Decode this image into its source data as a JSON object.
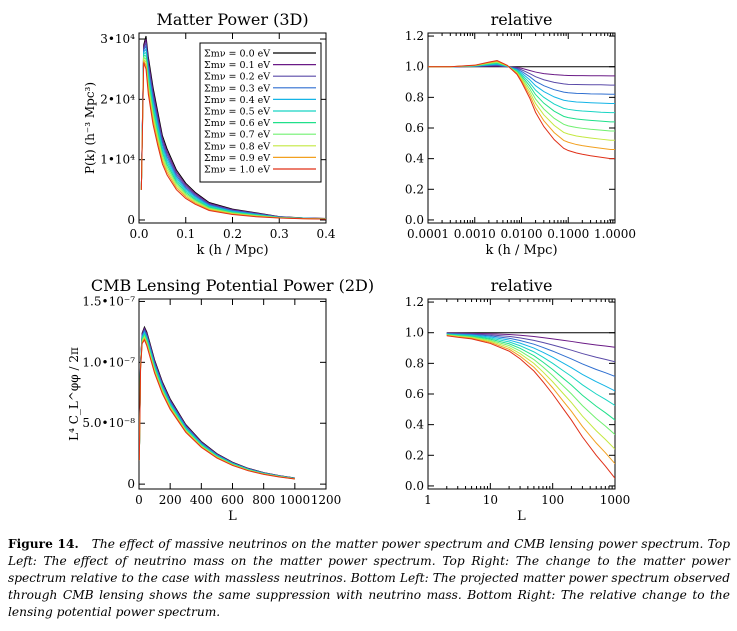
{
  "colors": [
    "#000000",
    "#6a1a86",
    "#5a4aa8",
    "#2f6fd0",
    "#14b4e6",
    "#18d4c4",
    "#20e08a",
    "#70f070",
    "#c4e840",
    "#f2a020",
    "#e03018"
  ],
  "chart_data": [
    {
      "id": "matter-power",
      "type": "line",
      "title": "Matter Power (3D)",
      "xlabel": "k (h / Mpc)",
      "ylabel": "P(k) (h⁻³ Mpc³)",
      "xlim": [
        0,
        0.4
      ],
      "ylim": [
        -500,
        31000
      ],
      "xticks": [
        {
          "v": 0,
          "label": "0.0"
        },
        {
          "v": 0.1,
          "label": "0.1"
        },
        {
          "v": 0.2,
          "label": "0.2"
        },
        {
          "v": 0.3,
          "label": "0.3"
        },
        {
          "v": 0.4,
          "label": "0.4"
        }
      ],
      "yticks": [
        {
          "v": 0,
          "label": "0"
        },
        {
          "v": 10000,
          "label": "1•10⁴"
        },
        {
          "v": 20000,
          "label": "2•10⁴"
        },
        {
          "v": 30000,
          "label": "3•10⁴"
        }
      ],
      "legend_position": "top-right",
      "x": [
        0.005,
        0.01,
        0.015,
        0.02,
        0.03,
        0.04,
        0.05,
        0.06,
        0.08,
        0.1,
        0.12,
        0.15,
        0.2,
        0.25,
        0.3,
        0.35,
        0.4
      ],
      "base": [
        5000,
        29000,
        30500,
        27000,
        22000,
        18000,
        14000,
        11500,
        8000,
        5800,
        4300,
        2600,
        1500,
        900,
        550,
        350,
        250
      ],
      "ratio_x": [
        0.005,
        0.01,
        0.015,
        0.02,
        0.03,
        0.04,
        0.05,
        0.06,
        0.08,
        0.1,
        0.12,
        0.15,
        0.2,
        0.25,
        0.3,
        0.35,
        0.4
      ],
      "ratio_shape": [
        0,
        0.25,
        0.45,
        0.57,
        0.7,
        0.78,
        0.84,
        0.88,
        0.93,
        0.96,
        0.98,
        0.99,
        1,
        1,
        1,
        1,
        1
      ],
      "series": [
        {
          "name": "Σmν = 0.0 eV",
          "nu_mass": 0.0
        },
        {
          "name": "Σmν = 0.1 eV",
          "nu_mass": 0.1
        },
        {
          "name": "Σmν = 0.2 eV",
          "nu_mass": 0.2
        },
        {
          "name": "Σmν = 0.3 eV",
          "nu_mass": 0.3
        },
        {
          "name": "Σmν = 0.4 eV",
          "nu_mass": 0.4
        },
        {
          "name": "Σmν = 0.5 eV",
          "nu_mass": 0.5
        },
        {
          "name": "Σmν = 0.6 eV",
          "nu_mass": 0.6
        },
        {
          "name": "Σmν = 0.7 eV",
          "nu_mass": 0.7
        },
        {
          "name": "Σmν = 0.8 eV",
          "nu_mass": 0.8
        },
        {
          "name": "Σmν = 0.9 eV",
          "nu_mass": 0.9
        },
        {
          "name": "Σmν = 1.0 eV",
          "nu_mass": 1.0
        }
      ]
    },
    {
      "id": "matter-relative",
      "type": "line",
      "title": "relative",
      "xlabel": "k (h / Mpc)",
      "ylabel": "",
      "xscale": "log",
      "xlim": [
        0.0001,
        1.0
      ],
      "ylim": [
        -0.02,
        1.22
      ],
      "xticks": [
        {
          "v": 0.0001,
          "label": "0.0001"
        },
        {
          "v": 0.001,
          "label": "0.0010"
        },
        {
          "v": 0.01,
          "label": "0.0100"
        },
        {
          "v": 0.1,
          "label": "0.1000"
        },
        {
          "v": 1.0,
          "label": "1.0000"
        }
      ],
      "yticks": [
        {
          "v": 0.0,
          "label": "0.0"
        },
        {
          "v": 0.2,
          "label": "0.2"
        },
        {
          "v": 0.4,
          "label": "0.4"
        },
        {
          "v": 0.6,
          "label": "0.6"
        },
        {
          "v": 0.8,
          "label": "0.8"
        },
        {
          "v": 1.0,
          "label": "1.0"
        },
        {
          "v": 1.2,
          "label": "1.2"
        }
      ],
      "x": [
        0.0001,
        0.0003,
        0.001,
        0.002,
        0.003,
        0.005,
        0.008,
        0.01,
        0.015,
        0.02,
        0.03,
        0.05,
        0.08,
        0.1,
        0.15,
        0.2,
        0.3,
        0.5,
        0.8,
        1.0
      ],
      "series": [
        {
          "name": "Σmν = 0.0 eV",
          "values": [
            1,
            1,
            1,
            1,
            1,
            1,
            1,
            1,
            1,
            1,
            1,
            1,
            1,
            1,
            1,
            1,
            1,
            1,
            1,
            1
          ]
        },
        {
          "name": "Σmν = 0.1 eV",
          "values": [
            1,
            1,
            1.001,
            1.003,
            1.004,
            1.0,
            0.995,
            0.99,
            0.975,
            0.965,
            0.955,
            0.948,
            0.944,
            0.943,
            0.942,
            0.942,
            0.941,
            0.941,
            0.94,
            0.94
          ]
        },
        {
          "name": "Σmν = 0.2 eV",
          "values": [
            1,
            1,
            1.002,
            1.006,
            1.008,
            1.0,
            0.99,
            0.98,
            0.955,
            0.935,
            0.915,
            0.898,
            0.888,
            0.885,
            0.884,
            0.883,
            0.882,
            0.882,
            0.88,
            0.88
          ]
        },
        {
          "name": "Σmν = 0.3 eV",
          "values": [
            1,
            1,
            1.003,
            1.009,
            1.012,
            1.001,
            0.985,
            0.97,
            0.935,
            0.905,
            0.876,
            0.85,
            0.834,
            0.83,
            0.826,
            0.825,
            0.823,
            0.822,
            0.82,
            0.82
          ]
        },
        {
          "name": "Σmν = 0.4 eV",
          "values": [
            1,
            1,
            1.004,
            1.012,
            1.016,
            1.002,
            0.98,
            0.96,
            0.915,
            0.876,
            0.838,
            0.803,
            0.781,
            0.776,
            0.77,
            0.768,
            0.765,
            0.762,
            0.76,
            0.76
          ]
        },
        {
          "name": "Σmν = 0.5 eV",
          "values": [
            1,
            1,
            1.005,
            1.015,
            1.02,
            1.003,
            0.975,
            0.95,
            0.895,
            0.847,
            0.8,
            0.756,
            0.728,
            0.722,
            0.714,
            0.711,
            0.708,
            0.703,
            0.7,
            0.7
          ]
        },
        {
          "name": "Σmν = 0.6 eV",
          "values": [
            1,
            1,
            1.006,
            1.018,
            1.024,
            1.004,
            0.97,
            0.94,
            0.875,
            0.818,
            0.762,
            0.71,
            0.676,
            0.668,
            0.659,
            0.655,
            0.65,
            0.645,
            0.64,
            0.64
          ]
        },
        {
          "name": "Σmν = 0.7 eV",
          "values": [
            1,
            1,
            1.007,
            1.021,
            1.028,
            1.005,
            0.965,
            0.93,
            0.855,
            0.789,
            0.724,
            0.663,
            0.624,
            0.614,
            0.603,
            0.598,
            0.592,
            0.586,
            0.58,
            0.58
          ]
        },
        {
          "name": "Σmν = 0.8 eV",
          "values": [
            1,
            1,
            1.008,
            1.024,
            1.032,
            1.006,
            0.96,
            0.92,
            0.835,
            0.76,
            0.686,
            0.617,
            0.571,
            0.561,
            0.548,
            0.542,
            0.535,
            0.527,
            0.52,
            0.52
          ]
        },
        {
          "name": "Σmν = 0.9 eV",
          "values": [
            1,
            1,
            1.009,
            1.027,
            1.036,
            1.007,
            0.955,
            0.91,
            0.815,
            0.731,
            0.648,
            0.57,
            0.519,
            0.507,
            0.492,
            0.485,
            0.477,
            0.468,
            0.46,
            0.46
          ]
        },
        {
          "name": "Σmν = 1.0 eV",
          "values": [
            1,
            1,
            1.01,
            1.03,
            1.04,
            1.008,
            0.95,
            0.9,
            0.795,
            0.702,
            0.61,
            0.524,
            0.467,
            0.453,
            0.437,
            0.429,
            0.419,
            0.409,
            0.4,
            0.4
          ]
        }
      ]
    },
    {
      "id": "cmb-lensing-power",
      "type": "line",
      "title": "CMB Lensing Potential Power (2D)",
      "xlabel": "L",
      "ylabel": "L⁴ C_L^φφ / 2π",
      "xlim": [
        0,
        1200
      ],
      "ylim": [
        -4e-09,
        1.52e-07
      ],
      "xticks": [
        {
          "v": 0,
          "label": "0"
        },
        {
          "v": 200,
          "label": "200"
        },
        {
          "v": 400,
          "label": "400"
        },
        {
          "v": 600,
          "label": "600"
        },
        {
          "v": 800,
          "label": "800"
        },
        {
          "v": 1000,
          "label": "1000"
        },
        {
          "v": 1200,
          "label": "1200"
        }
      ],
      "yticks": [
        {
          "v": 0,
          "label": "0"
        },
        {
          "v": 5e-08,
          "label": "5.0•10⁻⁸"
        },
        {
          "v": 1e-07,
          "label": "1.0•10⁻⁷"
        },
        {
          "v": 1.5e-07,
          "label": "1.5•10⁻⁷"
        }
      ],
      "x": [
        2,
        10,
        20,
        35,
        50,
        70,
        100,
        150,
        200,
        300,
        400,
        500,
        600,
        700,
        800,
        900,
        1000
      ],
      "base": [
        2e-08,
        1e-07,
        1.24e-07,
        1.29e-07,
        1.25e-07,
        1.16e-07,
        1.02e-07,
        8.4e-08,
        7e-08,
        4.9e-08,
        3.5e-08,
        2.5e-08,
        1.8e-08,
        1.3e-08,
        9.5e-09,
        7e-09,
        5e-09
      ],
      "series": [
        {
          "name": "Σmν = 0.0 eV"
        },
        {
          "name": "Σmν = 0.1 eV"
        },
        {
          "name": "Σmν = 0.2 eV"
        },
        {
          "name": "Σmν = 0.3 eV"
        },
        {
          "name": "Σmν = 0.4 eV"
        },
        {
          "name": "Σmν = 0.5 eV"
        },
        {
          "name": "Σmν = 0.6 eV"
        },
        {
          "name": "Σmν = 0.7 eV"
        },
        {
          "name": "Σmν = 0.8 eV"
        },
        {
          "name": "Σmν = 0.9 eV"
        },
        {
          "name": "Σmν = 1.0 eV"
        }
      ]
    },
    {
      "id": "cmb-relative",
      "type": "line",
      "title": "relative",
      "xlabel": "L",
      "ylabel": "",
      "xscale": "log",
      "xlim": [
        1,
        1000
      ],
      "ylim": [
        -0.02,
        1.22
      ],
      "xticks": [
        {
          "v": 1,
          "label": "1"
        },
        {
          "v": 10,
          "label": "10"
        },
        {
          "v": 100,
          "label": "100"
        },
        {
          "v": 1000,
          "label": "1000"
        }
      ],
      "yticks": [
        {
          "v": 0.0,
          "label": "0.0"
        },
        {
          "v": 0.2,
          "label": "0.2"
        },
        {
          "v": 0.4,
          "label": "0.4"
        },
        {
          "v": 0.6,
          "label": "0.6"
        },
        {
          "v": 0.8,
          "label": "0.8"
        },
        {
          "v": 1.0,
          "label": "1.0"
        },
        {
          "v": 1.2,
          "label": "1.2"
        }
      ],
      "x": [
        2,
        3,
        5,
        10,
        20,
        30,
        50,
        70,
        100,
        150,
        200,
        300,
        500,
        700,
        1000
      ],
      "series": [
        {
          "name": "Σmν = 0.0 eV",
          "values": [
            1,
            1,
            1,
            1,
            1,
            1,
            1,
            1,
            1,
            1,
            1,
            1,
            1,
            1,
            1
          ]
        },
        {
          "name": "Σmν = 0.1 eV",
          "values": [
            0.998,
            0.997,
            0.996,
            0.993,
            0.988,
            0.983,
            0.975,
            0.968,
            0.96,
            0.95,
            0.943,
            0.932,
            0.92,
            0.913,
            0.905
          ]
        },
        {
          "name": "Σmν = 0.2 eV",
          "values": [
            0.996,
            0.994,
            0.992,
            0.986,
            0.976,
            0.966,
            0.95,
            0.936,
            0.92,
            0.9,
            0.886,
            0.864,
            0.84,
            0.826,
            0.81
          ]
        },
        {
          "name": "Σmν = 0.3 eV",
          "values": [
            0.994,
            0.991,
            0.988,
            0.979,
            0.964,
            0.949,
            0.925,
            0.904,
            0.88,
            0.85,
            0.829,
            0.796,
            0.76,
            0.739,
            0.715
          ]
        },
        {
          "name": "Σmν = 0.4 eV",
          "values": [
            0.992,
            0.988,
            0.984,
            0.972,
            0.952,
            0.932,
            0.9,
            0.872,
            0.84,
            0.8,
            0.772,
            0.728,
            0.68,
            0.652,
            0.62
          ]
        },
        {
          "name": "Σmν = 0.5 eV",
          "values": [
            0.99,
            0.985,
            0.98,
            0.965,
            0.94,
            0.915,
            0.875,
            0.84,
            0.8,
            0.75,
            0.715,
            0.66,
            0.6,
            0.565,
            0.525
          ]
        },
        {
          "name": "Σmν = 0.6 eV",
          "values": [
            0.988,
            0.982,
            0.976,
            0.958,
            0.928,
            0.898,
            0.85,
            0.808,
            0.76,
            0.7,
            0.658,
            0.592,
            0.52,
            0.478,
            0.43
          ]
        },
        {
          "name": "Σmν = 0.7 eV",
          "values": [
            0.986,
            0.979,
            0.972,
            0.951,
            0.916,
            0.881,
            0.825,
            0.776,
            0.72,
            0.65,
            0.601,
            0.524,
            0.44,
            0.391,
            0.335
          ]
        },
        {
          "name": "Σmν = 0.8 eV",
          "values": [
            0.984,
            0.976,
            0.968,
            0.944,
            0.904,
            0.864,
            0.8,
            0.744,
            0.68,
            0.6,
            0.544,
            0.456,
            0.36,
            0.304,
            0.24
          ]
        },
        {
          "name": "Σmν = 0.9 eV",
          "values": [
            0.982,
            0.973,
            0.964,
            0.937,
            0.892,
            0.847,
            0.775,
            0.712,
            0.64,
            0.55,
            0.487,
            0.388,
            0.28,
            0.217,
            0.145
          ]
        },
        {
          "name": "Σmν = 1.0 eV",
          "values": [
            0.98,
            0.97,
            0.96,
            0.93,
            0.88,
            0.83,
            0.75,
            0.68,
            0.6,
            0.5,
            0.43,
            0.32,
            0.2,
            0.13,
            0.05
          ]
        }
      ]
    }
  ],
  "caption": {
    "label": "Figure 14.",
    "text": "The effect of massive neutrinos on the matter power spectrum and CMB lensing power spectrum. Top Left: The effect of neutrino mass on the matter power spectrum. Top Right: The change to the matter power spectrum relative to the case with massless neutrinos. Bottom Left: The projected matter power spectrum observed through CMB lensing shows the same suppression with neutrino mass. Bottom Right: The relative change to the lensing potential power spectrum."
  }
}
